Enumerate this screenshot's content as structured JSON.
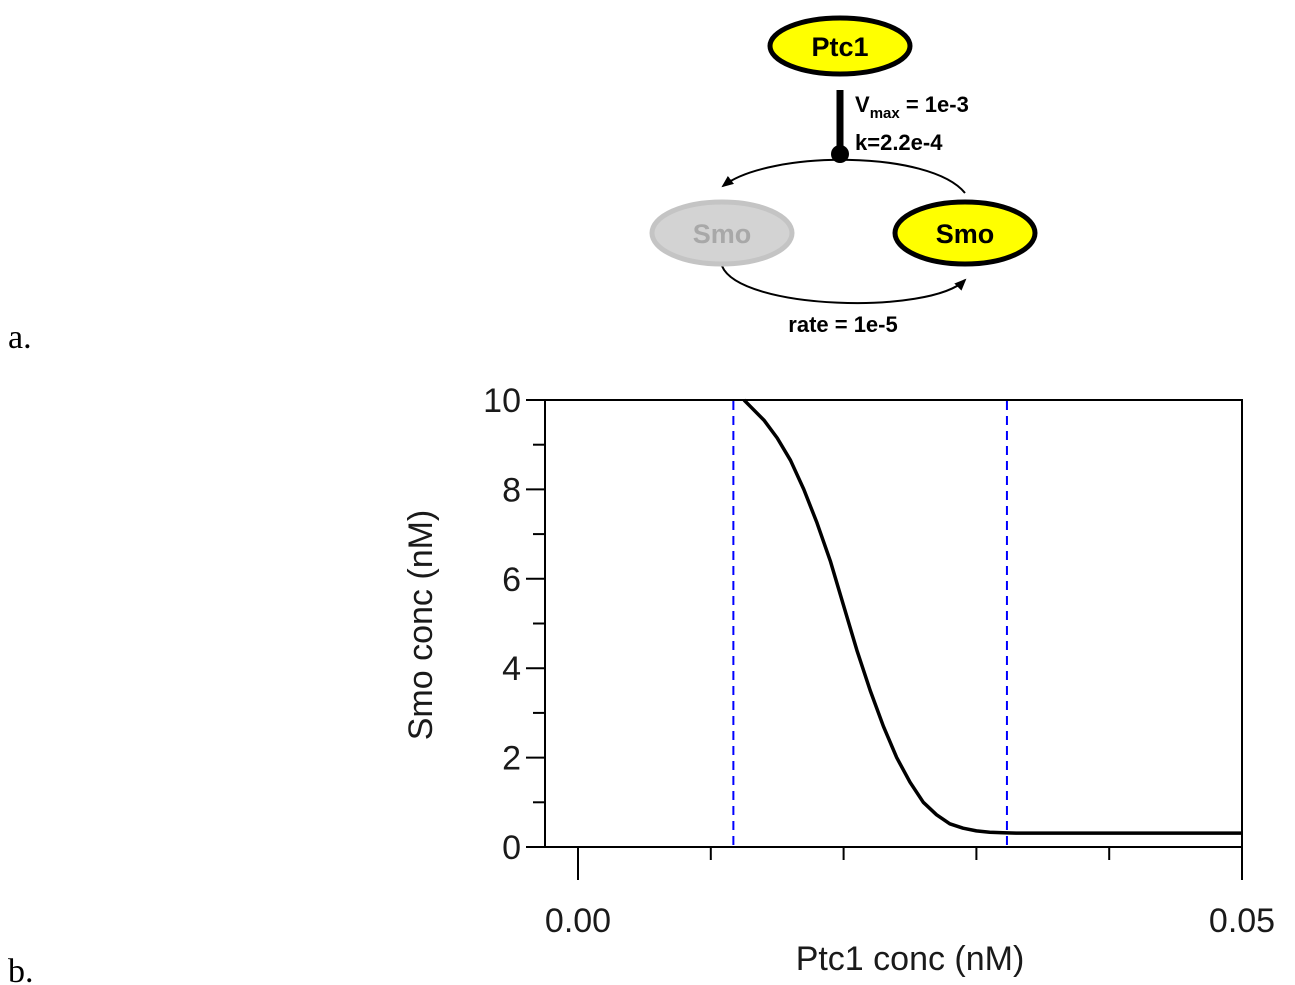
{
  "panels": {
    "a": "a.",
    "b": "b."
  },
  "diagram": {
    "nodes": {
      "ptc1": "Ptc1",
      "smo_inactive": "Smo",
      "smo_active": "Smo"
    },
    "colors": {
      "active_fill": "#ffff00",
      "inactive_fill": "#d3d3d3",
      "inactive_text": "#a8a8a8"
    },
    "inhibition": {
      "vmax_v": "V",
      "vmax_sub": "max",
      "vmax_rest": " = 1e-3",
      "k_label": "k=2.2e-4"
    },
    "activation": {
      "rate_label": "rate = 1e-5"
    }
  },
  "chart_data": {
    "type": "line",
    "xlabel": "Ptc1 conc (nM)",
    "ylabel": "Smo conc (nM)",
    "xlim": [
      0,
      0.05
    ],
    "ylim": [
      0,
      10
    ],
    "x_ticks": [
      "0.00",
      "0.05"
    ],
    "y_ticks": [
      "0",
      "2",
      "4",
      "6",
      "8",
      "10"
    ],
    "series": [
      {
        "color": "#000000",
        "x": [
          0.0125,
          0.013,
          0.014,
          0.015,
          0.016,
          0.017,
          0.018,
          0.019,
          0.02,
          0.021,
          0.022,
          0.023,
          0.024,
          0.025,
          0.026,
          0.027,
          0.028,
          0.029,
          0.03,
          0.031,
          0.032,
          0.033,
          0.034,
          0.035,
          0.04,
          0.045,
          0.05
        ],
        "y": [
          10.0,
          9.85,
          9.55,
          9.15,
          8.65,
          8.0,
          7.25,
          6.4,
          5.4,
          4.4,
          3.5,
          2.7,
          2.0,
          1.45,
          1.0,
          0.72,
          0.52,
          0.42,
          0.36,
          0.33,
          0.32,
          0.31,
          0.31,
          0.31,
          0.31,
          0.31,
          0.31
        ]
      }
    ],
    "reference_lines": {
      "x": [
        0.0117,
        0.0323
      ],
      "color": "#0000ff",
      "style": "dashed"
    }
  }
}
